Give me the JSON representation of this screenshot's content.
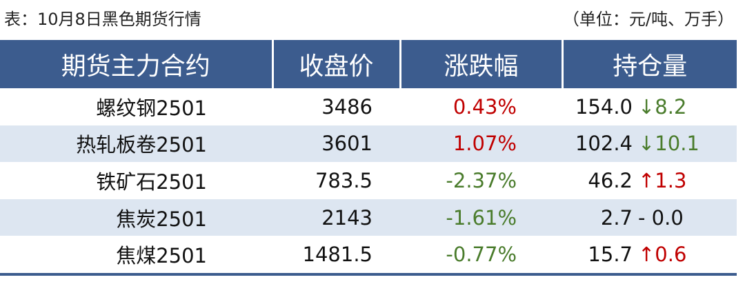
{
  "caption": {
    "title": "表：10月8日黑色期货行情",
    "unit": "（单位：元/吨、万手）"
  },
  "table": {
    "header": [
      "期货主力合约",
      "收盘价",
      "涨跌幅",
      "持仓量"
    ],
    "rows": [
      [
        "螺纹钢2501",
        "3486",
        "0.43%",
        "154.0",
        "↓8.2"
      ],
      [
        "热轧板卷2501",
        "3601",
        "1.07%",
        "102.4",
        "↓10.1"
      ],
      [
        "铁矿石2501",
        "783.5",
        "-2.37%",
        "46.2",
        "↑1.3"
      ],
      [
        "焦炭2501",
        "2143",
        "-1.61%",
        "2.7",
        "- 0.0"
      ],
      [
        "焦煤2501",
        "1481.5",
        "-0.77%",
        "15.7",
        "↑0.6"
      ]
    ]
  }
}
